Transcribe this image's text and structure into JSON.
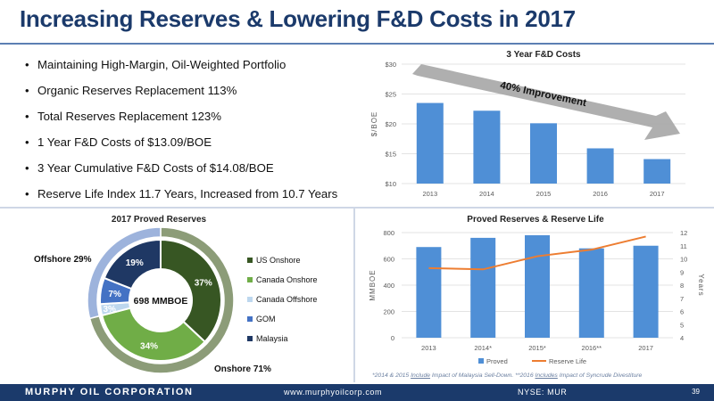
{
  "header": {
    "title": "Increasing Reserves & Lowering F&D Costs in 2017"
  },
  "bullets": [
    "Maintaining High-Margin, Oil-Weighted Portfolio",
    "Organic Reserves Replacement 113%",
    "Total Reserves Replacement 123%",
    "1 Year F&D Costs of $13.09/BOE",
    "3 Year Cumulative F&D Costs of $14.08/BOE",
    "Reserve Life Index 11.7 Years, Increased from 10.7 Years"
  ],
  "footer": {
    "company": "MURPHY OIL CORPORATION",
    "website": "www.murphyoilcorp.com",
    "ticker": "NYSE: MUR",
    "page": "39"
  },
  "footnote": {
    "part1": "*2014 & 2015 ",
    "link1": "Include",
    "part2": " Impact of Malaysia Sell-Down. **2016 ",
    "link2": "Includes",
    "part3": " Impact of Syncrude Divestiture"
  },
  "colors": {
    "brand": "#1b3a6b",
    "bar": "#4f8fd6",
    "line": "#ed7d31",
    "arrow": "#a6a6a6",
    "us_onshore": "#375623",
    "canada_onshore": "#70ad47",
    "canada_offshore": "#bdd7ee",
    "gom": "#4472c4",
    "malaysia": "#1f3864",
    "onshore_ring": "#8c9c78",
    "offshore_ring": "#9db3dc"
  },
  "chart_data": [
    {
      "type": "bar",
      "title": "3 Year F&D Costs",
      "ylabel": "$/BOE",
      "categories": [
        "2013",
        "2014",
        "2015",
        "2016",
        "2017"
      ],
      "values": [
        23.5,
        22.2,
        20.1,
        15.9,
        14.1
      ],
      "ylim": [
        10,
        30
      ],
      "yticks": [
        "$10",
        "$15",
        "$20",
        "$25",
        "$30"
      ],
      "annotation": "40% Improvement",
      "grid": true
    },
    {
      "type": "pie",
      "title": "2017 Proved Reserves",
      "center_label": "698 MMBOE",
      "slices": [
        {
          "name": "US Onshore",
          "value": 37,
          "label": "37%"
        },
        {
          "name": "Canada Onshore",
          "value": 34,
          "label": "34%"
        },
        {
          "name": "Canada Offshore",
          "value": 3,
          "label": "3%"
        },
        {
          "name": "GOM",
          "value": 7,
          "label": "7%"
        },
        {
          "name": "Malaysia",
          "value": 19,
          "label": "19%"
        }
      ],
      "outer_ring": [
        {
          "name": "Onshore",
          "value": 71,
          "label": "Onshore 71%"
        },
        {
          "name": "Offshore",
          "value": 29,
          "label": "Offshore 29%"
        }
      ],
      "legend": "right"
    },
    {
      "type": "bar",
      "title": "Proved Reserves & Reserve Life",
      "categories": [
        "2013",
        "2014*",
        "2015*",
        "2016**",
        "2017"
      ],
      "series": [
        {
          "name": "Proved",
          "type": "bar",
          "axis": "left",
          "values": [
            690,
            760,
            780,
            680,
            700
          ]
        },
        {
          "name": "Reserve Life",
          "type": "line",
          "axis": "right",
          "values": [
            9.3,
            9.2,
            10.2,
            10.7,
            11.7
          ]
        }
      ],
      "ylabel": "MMBOE",
      "y2label": "Years",
      "ylim": [
        0,
        800
      ],
      "y2lim": [
        4,
        12
      ],
      "yticks": [
        "0",
        "200",
        "400",
        "600",
        "800"
      ],
      "y2ticks": [
        "4",
        "5",
        "6",
        "7",
        "8",
        "9",
        "10",
        "11",
        "12"
      ],
      "legend": "bottom",
      "grid": true
    }
  ]
}
